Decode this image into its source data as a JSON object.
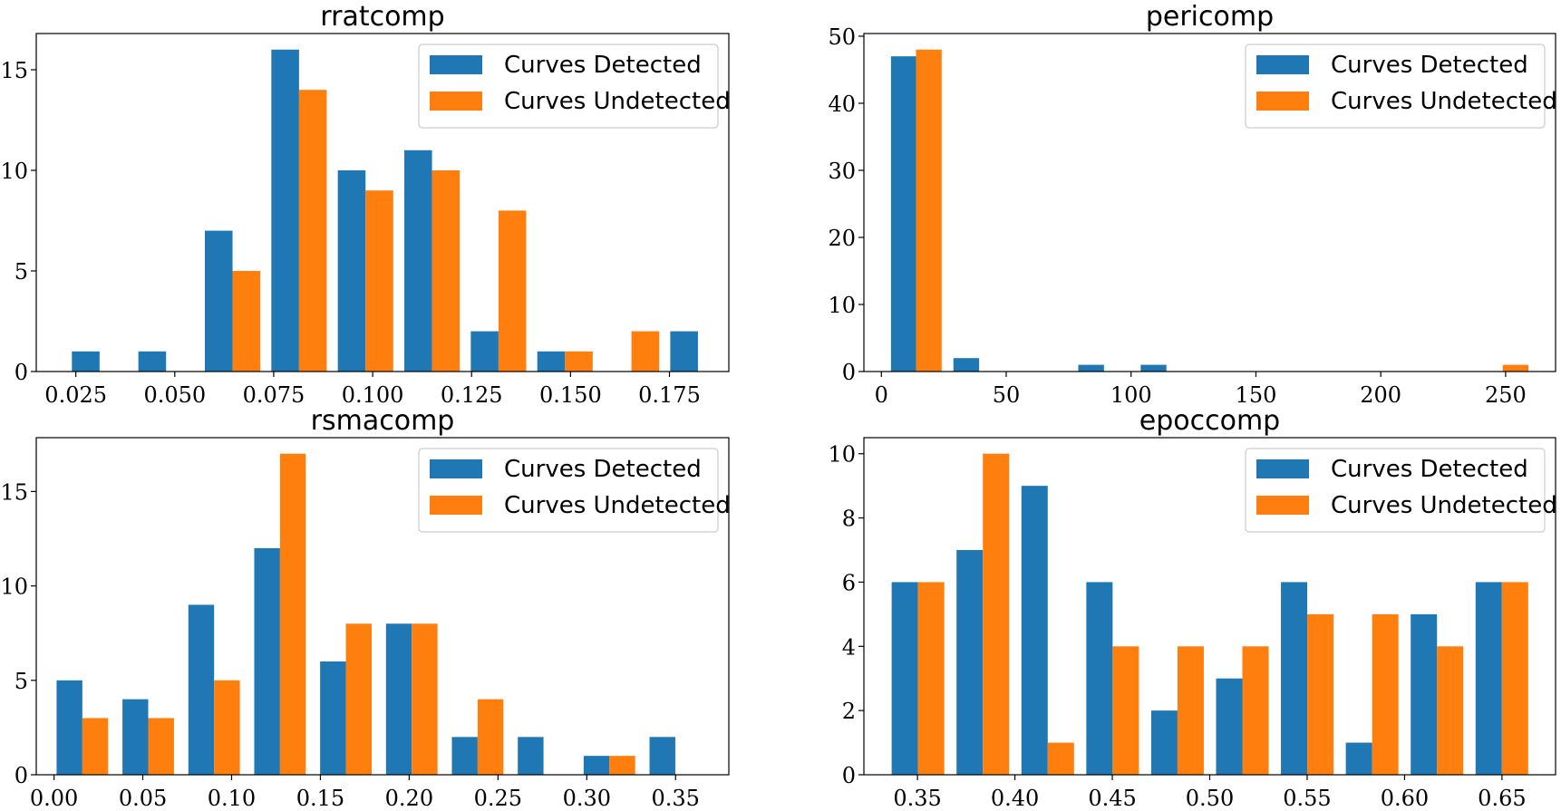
{
  "colors": {
    "detected": "#1f77b4",
    "undetected": "#ff7f0e"
  },
  "chart_data": [
    {
      "type": "bar",
      "title": "rratcomp",
      "xlim": [
        0.015,
        0.19
      ],
      "ylim": [
        0,
        16.8
      ],
      "bar_width": 0.007,
      "xticks": [
        0.025,
        0.05,
        0.075,
        0.1,
        0.125,
        0.15,
        0.175
      ],
      "xtick_labels": [
        "0.025",
        "0.050",
        "0.075",
        "0.100",
        "0.125",
        "0.150",
        "0.175"
      ],
      "yticks": [
        0,
        5,
        10,
        15
      ],
      "legend": "top-right",
      "series": [
        {
          "name": "Curves Detected",
          "color_key": "detected",
          "x": [
            0.0275,
            0.0443,
            0.0611,
            0.0779,
            0.0947,
            0.1115,
            0.1283,
            0.1451,
            0.1619,
            0.1787
          ],
          "values": [
            1,
            1,
            7,
            16,
            10,
            11,
            2,
            1,
            0,
            2
          ]
        },
        {
          "name": "Curves Undetected",
          "color_key": "undetected",
          "x": [
            0.0345,
            0.0513,
            0.0681,
            0.0849,
            0.1017,
            0.1185,
            0.1353,
            0.1521,
            0.1689,
            0.1857
          ],
          "values": [
            0,
            0,
            5,
            14,
            9,
            10,
            8,
            1,
            2,
            0
          ]
        }
      ]
    },
    {
      "type": "bar",
      "title": "pericomp",
      "xlim": [
        -7,
        270
      ],
      "ylim": [
        0,
        50.4
      ],
      "bar_width": 10.3,
      "xticks": [
        0,
        50,
        100,
        150,
        200,
        250
      ],
      "xtick_labels": [
        "0",
        "50",
        "100",
        "150",
        "200",
        "250"
      ],
      "yticks": [
        0,
        10,
        20,
        30,
        40,
        50
      ],
      "legend": "top-right",
      "series": [
        {
          "name": "Curves Detected",
          "color_key": "detected",
          "x": [
            9,
            34,
            59,
            84,
            109,
            134,
            159,
            184,
            209,
            234
          ],
          "values": [
            47,
            2,
            0,
            1,
            1,
            0,
            0,
            0,
            0,
            0
          ]
        },
        {
          "name": "Curves Undetected",
          "color_key": "undetected",
          "x": [
            19,
            44,
            69,
            94,
            119,
            144,
            169,
            194,
            219,
            254
          ],
          "values": [
            48,
            0,
            0,
            0,
            0,
            0,
            0,
            0,
            0,
            1
          ]
        }
      ]
    },
    {
      "type": "bar",
      "title": "rsmacomp",
      "xlim": [
        -0.01,
        0.38
      ],
      "ylim": [
        0,
        17.85
      ],
      "bar_width": 0.0145,
      "xticks": [
        0.0,
        0.05,
        0.1,
        0.15,
        0.2,
        0.25,
        0.3,
        0.35
      ],
      "xtick_labels": [
        "0.00",
        "0.05",
        "0.10",
        "0.15",
        "0.20",
        "0.25",
        "0.30",
        "0.35"
      ],
      "yticks": [
        0,
        5,
        10,
        15
      ],
      "legend": "top-right",
      "series": [
        {
          "name": "Curves Detected",
          "color_key": "detected",
          "x": [
            0.0087,
            0.0458,
            0.0829,
            0.12,
            0.1571,
            0.1942,
            0.2313,
            0.2684,
            0.3055,
            0.3426
          ],
          "values": [
            5,
            4,
            9,
            12,
            6,
            8,
            2,
            2,
            1,
            2
          ]
        },
        {
          "name": "Curves Undetected",
          "color_key": "undetected",
          "x": [
            0.0232,
            0.0603,
            0.0974,
            0.1345,
            0.1716,
            0.2087,
            0.2458,
            0.2829,
            0.32,
            0.3571
          ],
          "values": [
            3,
            3,
            5,
            17,
            8,
            8,
            4,
            0,
            1,
            0
          ]
        }
      ]
    },
    {
      "type": "bar",
      "title": "epoccomp",
      "xlim": [
        0.3225,
        0.6775
      ],
      "ylim": [
        0,
        10.5
      ],
      "bar_width": 0.0135,
      "xticks": [
        0.35,
        0.4,
        0.45,
        0.5,
        0.55,
        0.6,
        0.65
      ],
      "xtick_labels": [
        "0.35",
        "0.40",
        "0.45",
        "0.50",
        "0.55",
        "0.60",
        "0.65"
      ],
      "yticks": [
        0,
        2,
        4,
        6,
        8,
        10
      ],
      "legend": "top-right",
      "series": [
        {
          "name": "Curves Detected",
          "color_key": "detected",
          "x": [
            0.3435,
            0.3768,
            0.4101,
            0.4434,
            0.4767,
            0.51,
            0.5433,
            0.5766,
            0.6099,
            0.6432
          ],
          "values": [
            6,
            7,
            9,
            6,
            2,
            3,
            6,
            1,
            5,
            6
          ]
        },
        {
          "name": "Curves Undetected",
          "color_key": "undetected",
          "x": [
            0.357,
            0.3903,
            0.4236,
            0.4569,
            0.4902,
            0.5235,
            0.5568,
            0.5901,
            0.6234,
            0.6567
          ],
          "values": [
            6,
            10,
            1,
            4,
            4,
            4,
            5,
            5,
            4,
            6
          ]
        }
      ]
    }
  ]
}
